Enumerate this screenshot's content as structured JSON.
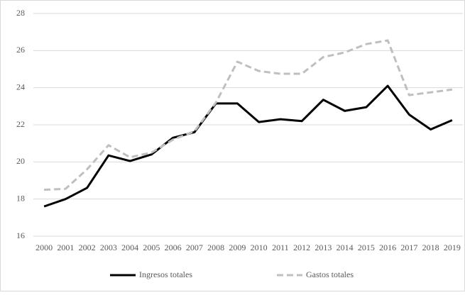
{
  "chart_data": {
    "type": "line",
    "categories": [
      "2000",
      "2001",
      "2002",
      "2003",
      "2004",
      "2005",
      "2006",
      "2007",
      "2008",
      "2009",
      "2010",
      "2011",
      "2012",
      "2013",
      "2014",
      "2015",
      "2016",
      "2017",
      "2018",
      "2019"
    ],
    "series": [
      {
        "name": "Ingresos totales",
        "color": "#000000",
        "dash": false,
        "values": [
          17.6,
          18.0,
          18.6,
          20.35,
          20.05,
          20.4,
          21.3,
          21.6,
          23.15,
          23.15,
          22.15,
          22.3,
          22.2,
          23.35,
          22.75,
          22.95,
          24.1,
          22.55,
          21.75,
          22.25
        ]
      },
      {
        "name": "Gastos totales",
        "color": "#bfbfbf",
        "dash": true,
        "values": [
          18.5,
          18.55,
          19.6,
          20.9,
          20.25,
          20.5,
          21.2,
          21.65,
          23.2,
          25.4,
          24.9,
          24.75,
          24.75,
          25.65,
          25.9,
          26.35,
          26.55,
          23.6,
          23.75,
          23.9
        ]
      }
    ],
    "ylim": [
      16,
      28
    ],
    "yticks": [
      16,
      18,
      20,
      22,
      24,
      26,
      28
    ],
    "grid": true,
    "legend": "bottom"
  }
}
